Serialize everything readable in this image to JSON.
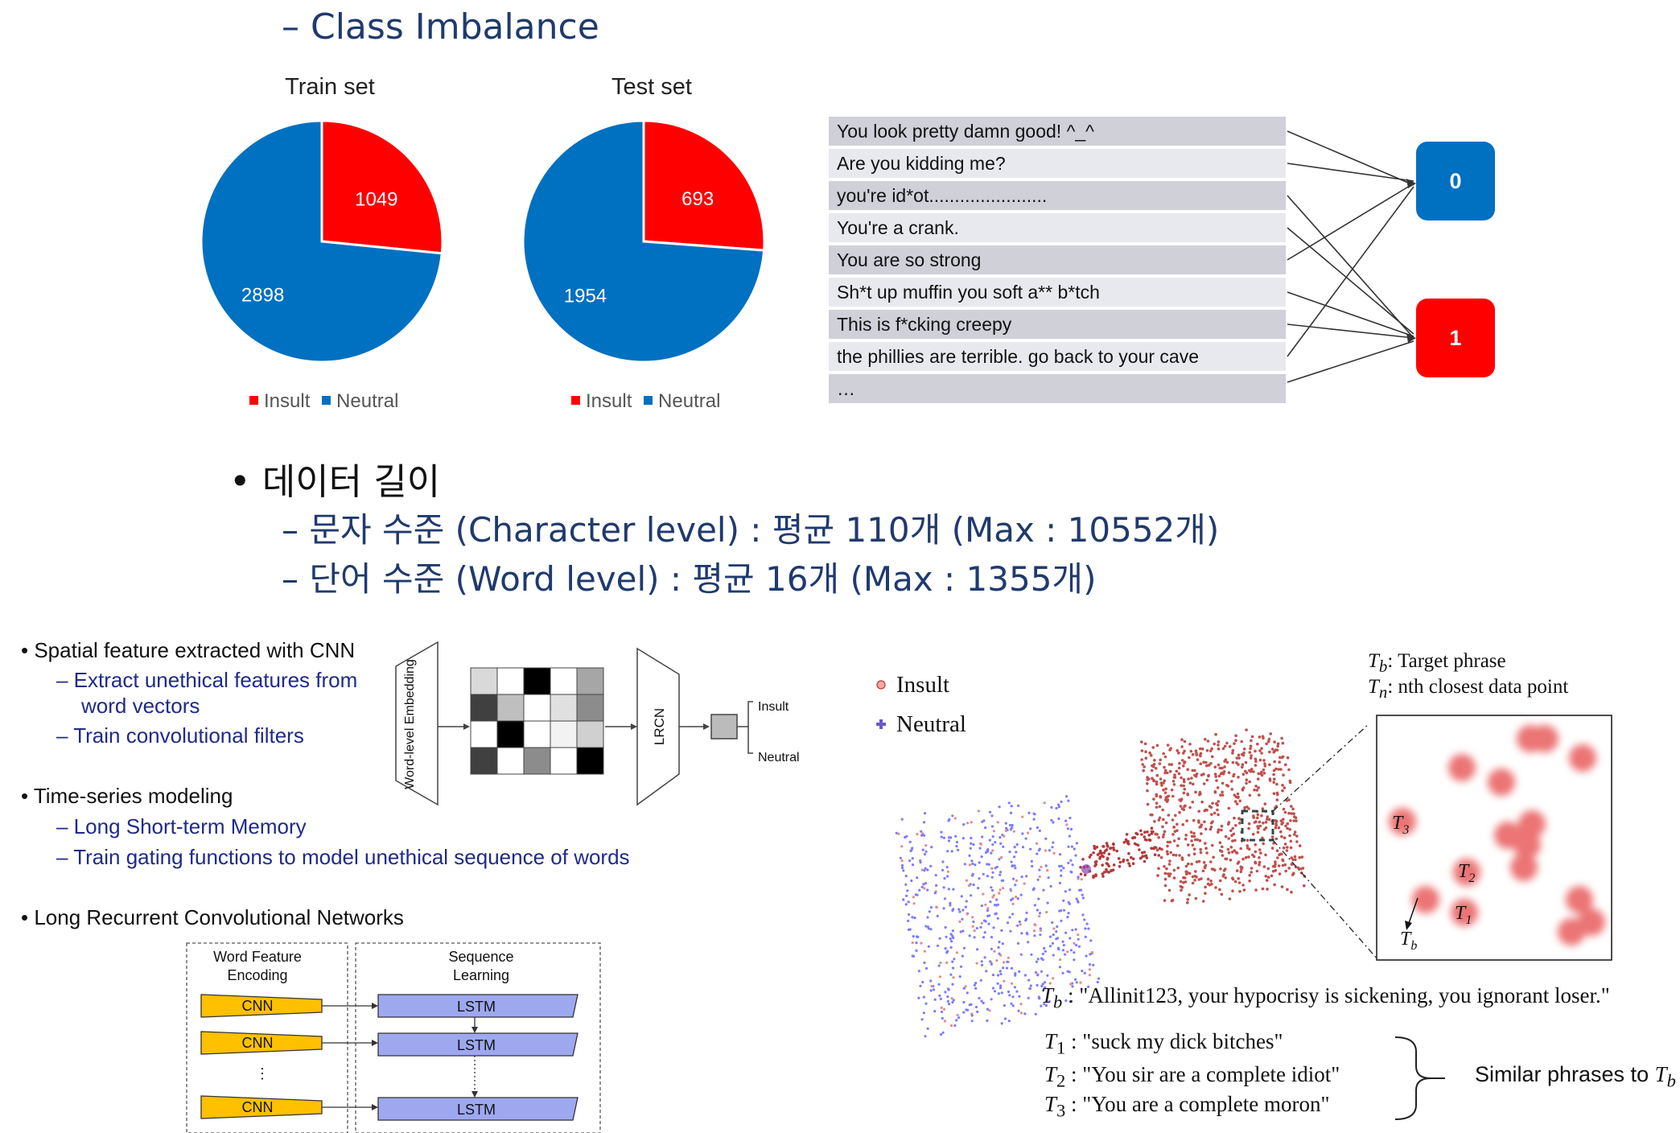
{
  "header": {
    "title": "– Class Imbalance"
  },
  "chart_data": [
    {
      "type": "pie",
      "title": "Train set",
      "categories": [
        "Insult",
        "Neutral"
      ],
      "values": [
        1049,
        2898
      ],
      "colors": [
        "#ff0000",
        "#0070c0"
      ],
      "legend_position": "bottom"
    },
    {
      "type": "pie",
      "title": "Test set",
      "categories": [
        "Insult",
        "Neutral"
      ],
      "values": [
        693,
        1954
      ],
      "colors": [
        "#ff0000",
        "#0070c0"
      ],
      "legend_position": "bottom"
    }
  ],
  "legend": {
    "insult": "Insult",
    "neutral": "Neutral"
  },
  "examples": {
    "rows": [
      "You look pretty damn good! ^_^",
      "Are you kidding me?",
      "you're id*ot.......................",
      "You're a crank.",
      "You are so strong",
      "Sh*t up muffin you soft a** b*tch",
      "This is f*cking creepy",
      "the phillies are terrible. go back to your cave",
      "…"
    ],
    "labels": [
      "0",
      "1"
    ],
    "label_colors": [
      "#0070c0",
      "#ff0000"
    ]
  },
  "data_length": {
    "heading": "데이터 길이",
    "char_level": "– 문자 수준 (Character level) : 평균 110개 (Max : 10552개)",
    "word_level": "– 단어 수준 (Word level) : 평균 16개 (Max : 1355개)"
  },
  "bullets": {
    "spatial": "Spatial feature extracted with CNN",
    "spatial_sub1a": "– Extract unethical features from",
    "spatial_sub1b": "word vectors",
    "spatial_sub2": "– Train convolutional filters",
    "time": "Time-series modeling",
    "time_sub1": "– Long Short-term Memory",
    "time_sub2": "– Train gating functions to model unethical sequence of words",
    "lrcn": "Long Recurrent Convolutional Networks"
  },
  "arch": {
    "embedding": "Word-level Embedding",
    "lrcn": "LRCN",
    "insult": "Insult",
    "neutral": "Neutral",
    "wfe_title": "Word Feature Encoding",
    "seq_title": "Sequence Learning",
    "cnn": "CNN",
    "lstm": "LSTM",
    "ellipsis": "⋮"
  },
  "tsne": {
    "legend_insult": "Insult",
    "legend_neutral": "Neutral",
    "tb_def": "Target phrase",
    "tn_def": "nth closest data point",
    "tb_phrase": "\"Allinit123, your hypocrisy is sickening, you ignorant loser.\"",
    "t1_phrase": "\"suck my dick bitches\"",
    "t2_phrase": "\"You sir are a complete idiot\"",
    "t3_phrase": "\"You are a complete moron\"",
    "similar": "Similar phrases to"
  }
}
